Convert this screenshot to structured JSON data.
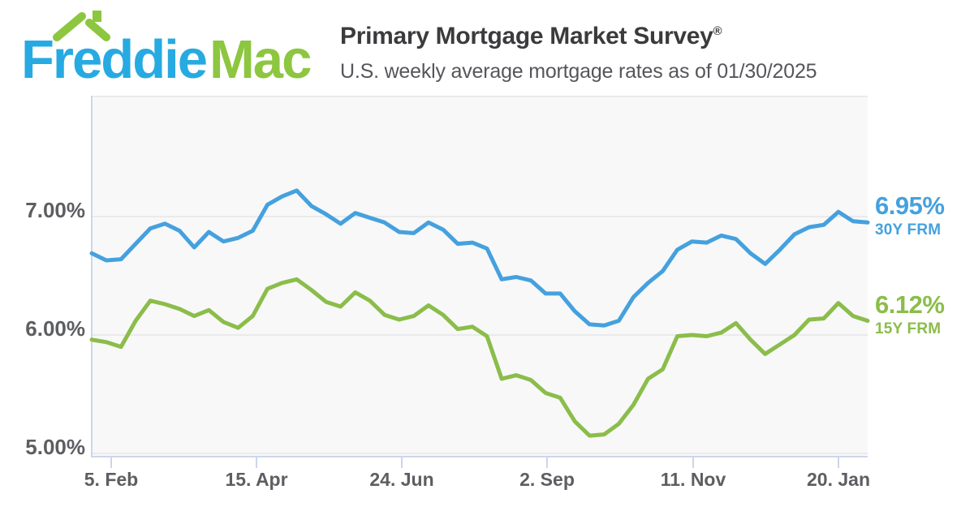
{
  "header": {
    "logo": {
      "word1": "Freddie",
      "word2": "Mac",
      "word1_color": "#27aae1",
      "word2_color": "#8dc63f",
      "roof_color": "#8dc63f"
    },
    "title": "Primary Mortgage Market Survey",
    "registered_mark": "®",
    "subtitle": "U.S. weekly average mortgage rates as of 01/30/2025"
  },
  "chart_data": {
    "type": "line",
    "title": "Primary Mortgage Market Survey",
    "subtitle": "U.S. weekly average mortgage rates as of 01/30/2025",
    "background": "#f8f8f9",
    "grid": true,
    "legend_position": "right-end-labels",
    "x_axis": {
      "type": "date",
      "frequency": "weekly",
      "start_date": "2024-01-25",
      "end_date": "2025-01-30",
      "tick_labels": [
        "5. Feb",
        "15. Apr",
        "24. Jun",
        "2. Sep",
        "11. Nov",
        "20. Jan"
      ]
    },
    "y_axis": {
      "range": [
        4.9,
        8.0
      ],
      "ticks": [
        {
          "label": "7.00%",
          "value": 7.0
        },
        {
          "label": "6.00%",
          "value": 6.0
        },
        {
          "label": "5.00%",
          "value": 5.0
        }
      ]
    },
    "series": [
      {
        "name": "30Y FRM",
        "end_label": "6.95%",
        "latest_value": 6.95,
        "color": "#45a1de",
        "values": [
          6.69,
          6.63,
          6.64,
          6.77,
          6.9,
          6.94,
          6.88,
          6.74,
          6.87,
          6.79,
          6.82,
          6.88,
          7.1,
          7.17,
          7.22,
          7.09,
          7.02,
          6.94,
          7.03,
          6.99,
          6.95,
          6.87,
          6.86,
          6.95,
          6.89,
          6.77,
          6.78,
          6.73,
          6.47,
          6.49,
          6.46,
          6.35,
          6.35,
          6.2,
          6.09,
          6.08,
          6.12,
          6.32,
          6.44,
          6.54,
          6.72,
          6.79,
          6.78,
          6.84,
          6.81,
          6.69,
          6.6,
          6.72,
          6.85,
          6.91,
          6.93,
          7.04,
          6.96,
          6.95
        ]
      },
      {
        "name": "15Y FRM",
        "end_label": "6.12%",
        "latest_value": 6.12,
        "color": "#8bbd4a",
        "values": [
          5.96,
          5.94,
          5.9,
          6.12,
          6.29,
          6.26,
          6.22,
          6.16,
          6.21,
          6.11,
          6.06,
          6.16,
          6.39,
          6.44,
          6.47,
          6.38,
          6.28,
          6.24,
          6.36,
          6.29,
          6.17,
          6.13,
          6.16,
          6.25,
          6.17,
          6.05,
          6.07,
          5.99,
          5.63,
          5.66,
          5.62,
          5.51,
          5.47,
          5.27,
          5.15,
          5.16,
          5.25,
          5.41,
          5.63,
          5.71,
          5.99,
          6.0,
          5.99,
          6.02,
          6.1,
          5.96,
          5.84,
          5.92,
          6.0,
          6.13,
          6.14,
          6.27,
          6.16,
          6.12
        ]
      }
    ]
  }
}
